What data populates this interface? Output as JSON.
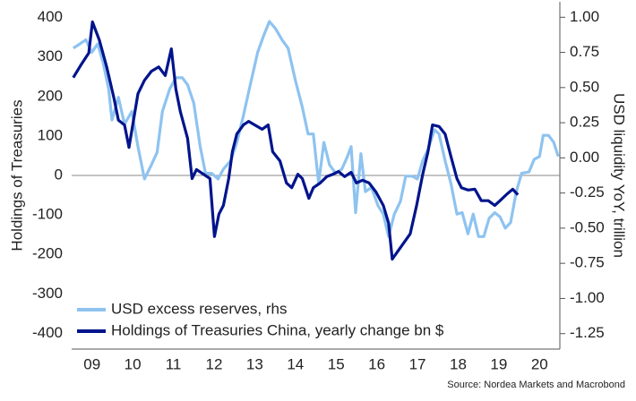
{
  "chart_data": {
    "type": "line",
    "ylabel": "Holdings of Treasuries",
    "y2label": "USD liquidity YoY, trillion",
    "source": "Source: Nordea Markets and Macrobond",
    "xlim": [
      2009,
      2021
    ],
    "xticks": [
      {
        "value": 2009.5,
        "label": "09"
      },
      {
        "value": 2010.5,
        "label": "10"
      },
      {
        "value": 2011.5,
        "label": "11"
      },
      {
        "value": 2012.5,
        "label": "12"
      },
      {
        "value": 2013.5,
        "label": "13"
      },
      {
        "value": 2014.5,
        "label": "14"
      },
      {
        "value": 2015.5,
        "label": "15"
      },
      {
        "value": 2016.5,
        "label": "16"
      },
      {
        "value": 2017.5,
        "label": "17"
      },
      {
        "value": 2018.5,
        "label": "18"
      },
      {
        "value": 2019.5,
        "label": "19"
      },
      {
        "value": 2020.5,
        "label": "20"
      }
    ],
    "ylim": [
      -440,
      440
    ],
    "yticks": [
      -400,
      -300,
      -200,
      -100,
      0,
      100,
      200,
      300,
      400
    ],
    "y2lim": [
      -1.36,
      1.11
    ],
    "y2ticks": [
      {
        "value": 1,
        "label": "1.00"
      },
      0.75,
      {
        "value": 0.5,
        "label": "0.50"
      },
      0.25,
      {
        "value": 0,
        "label": "0.00"
      },
      -0.25,
      {
        "value": -0.5,
        "label": "-0.50"
      },
      -0.75,
      {
        "value": -1,
        "label": "-1.00"
      },
      -1.25
    ],
    "zero_line": true,
    "legend": "lower left",
    "series": [
      {
        "name": "USD excess reserves, rhs",
        "color": "#8ec3f0",
        "axis": "y2",
        "x": [
          2009.04,
          2009.2,
          2009.35,
          2009.49,
          2009.64,
          2009.77,
          2009.91,
          2009.99,
          2010.15,
          2010.3,
          2010.48,
          2010.63,
          2010.79,
          2010.96,
          2011.1,
          2011.23,
          2011.41,
          2011.56,
          2011.72,
          2011.85,
          2012.0,
          2012.16,
          2012.29,
          2012.44,
          2012.6,
          2012.73,
          2012.91,
          2013.06,
          2013.22,
          2013.39,
          2013.57,
          2013.72,
          2013.86,
          2014.01,
          2014.17,
          2014.32,
          2014.5,
          2014.67,
          2014.81,
          2014.94,
          2015.07,
          2015.2,
          2015.34,
          2015.49,
          2015.64,
          2015.78,
          2015.87,
          2015.98,
          2016.11,
          2016.22,
          2016.37,
          2016.53,
          2016.66,
          2016.79,
          2016.93,
          2017.08,
          2017.21,
          2017.37,
          2017.5,
          2017.63,
          2017.76,
          2017.92,
          2018.03,
          2018.18,
          2018.32,
          2018.47,
          2018.6,
          2018.74,
          2018.87,
          2019.0,
          2019.13,
          2019.26,
          2019.4,
          2019.53,
          2019.66,
          2019.79,
          2019.93,
          2020.06,
          2020.24,
          2020.37,
          2020.5,
          2020.59,
          2020.72,
          2020.85,
          2020.96
        ],
        "values": [
          0.78,
          0.81,
          0.84,
          0.75,
          0.81,
          0.68,
          0.49,
          0.27,
          0.43,
          0.24,
          0.33,
          0.08,
          -0.15,
          -0.05,
          0.04,
          0.33,
          0.49,
          0.57,
          0.57,
          0.52,
          0.39,
          0.08,
          -0.11,
          -0.11,
          -0.15,
          -0.08,
          -0.02,
          0.11,
          0.3,
          0.52,
          0.75,
          0.87,
          0.97,
          0.92,
          0.84,
          0.78,
          0.55,
          0.36,
          0.17,
          0.17,
          -0.18,
          0.11,
          -0.05,
          -0.11,
          -0.08,
          0.01,
          0.08,
          -0.39,
          0.03,
          -0.24,
          -0.21,
          -0.34,
          -0.4,
          -0.56,
          -0.4,
          -0.31,
          -0.13,
          -0.13,
          -0.15,
          -0.02,
          0.06,
          0.2,
          0.17,
          -0.02,
          -0.18,
          -0.4,
          -0.39,
          -0.54,
          -0.4,
          -0.56,
          -0.56,
          -0.43,
          -0.39,
          -0.42,
          -0.5,
          -0.46,
          -0.24,
          -0.11,
          -0.1,
          -0.01,
          0.01,
          0.16,
          0.16,
          0.11,
          0.01
        ]
      },
      {
        "name": "Holdings of Treasuries China, yearly change bn $",
        "color": "#00148c",
        "axis": "y",
        "x": [
          2009.04,
          2009.24,
          2009.42,
          2009.51,
          2009.68,
          2009.86,
          2010.04,
          2010.15,
          2010.3,
          2010.41,
          2010.52,
          2010.63,
          2010.79,
          2010.96,
          2011.14,
          2011.3,
          2011.45,
          2011.56,
          2011.67,
          2011.85,
          2011.96,
          2012.07,
          2012.24,
          2012.4,
          2012.51,
          2012.62,
          2012.73,
          2012.86,
          2012.95,
          2013.06,
          2013.22,
          2013.35,
          2013.5,
          2013.68,
          2013.83,
          2013.94,
          2014.12,
          2014.28,
          2014.41,
          2014.56,
          2014.67,
          2014.83,
          2014.94,
          2015.11,
          2015.27,
          2015.42,
          2015.56,
          2015.71,
          2015.87,
          2016.0,
          2016.15,
          2016.31,
          2016.48,
          2016.66,
          2016.79,
          2016.88,
          2017.04,
          2017.19,
          2017.32,
          2017.48,
          2017.63,
          2017.76,
          2017.87,
          2018.03,
          2018.18,
          2018.32,
          2018.47,
          2018.58,
          2018.74,
          2018.91,
          2019.07,
          2019.24,
          2019.4,
          2019.53,
          2019.68,
          2019.84,
          2019.97
        ],
        "values": [
          248,
          282,
          310,
          389,
          343,
          275,
          196,
          140,
          128,
          71,
          139,
          207,
          241,
          264,
          275,
          253,
          321,
          219,
          162,
          94,
          -8,
          15,
          3,
          -8,
          -155,
          -98,
          -76,
          -8,
          60,
          105,
          128,
          137,
          128,
          117,
          128,
          60,
          37,
          -19,
          -31,
          3,
          -8,
          -58,
          -31,
          -19,
          -3,
          3,
          10,
          -3,
          8,
          -19,
          -12,
          -19,
          -42,
          -76,
          -121,
          -212,
          -189,
          -167,
          -148,
          -76,
          3,
          60,
          128,
          124,
          105,
          49,
          -8,
          -31,
          -37,
          -35,
          -64,
          -64,
          -76,
          -64,
          -49,
          -35,
          -49
        ]
      }
    ]
  }
}
